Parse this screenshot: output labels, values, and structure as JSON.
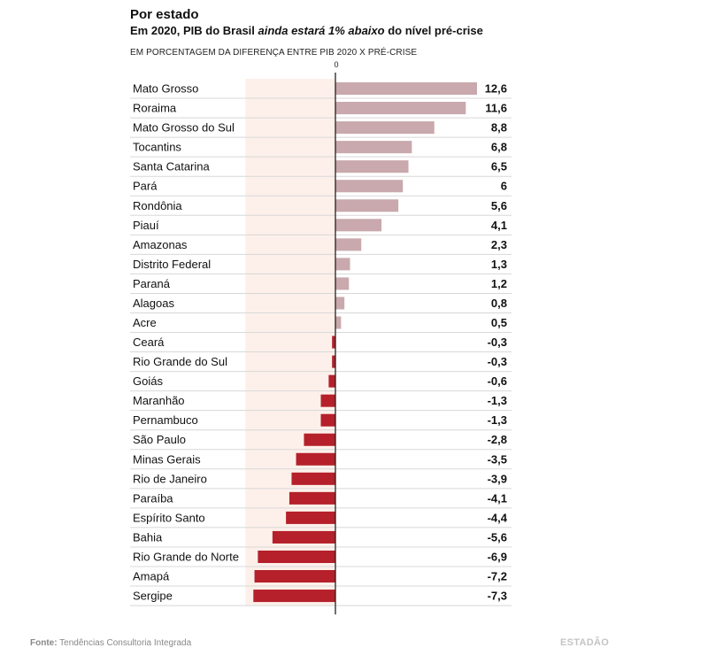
{
  "header": {
    "title": "Por estado",
    "subtitle_prefix": "Em 2020, PIB do Brasil ",
    "subtitle_em": "ainda estará 1% abaixo",
    "subtitle_suffix": " do nível pré-crise",
    "axis_note": "EM PORCENTAGEM DA DIFERENÇA ENTRE PIB 2020 X PRÉ-CRISE",
    "zero_label": "0"
  },
  "footer": {
    "source_label": "Fonte:",
    "source_text": " Tendências Consultoria Integrada",
    "brand": "ESTADÃO"
  },
  "colors": {
    "positive": "#c9a9ad",
    "negative": "#b5202a",
    "shade": "#fdf0ea",
    "divider": "#d8d8d8",
    "axis": "#222222"
  },
  "chart_data": {
    "type": "bar",
    "orientation": "horizontal",
    "xlim": [
      -7.3,
      12.6
    ],
    "grid": false,
    "categories": [
      "Mato Grosso",
      "Roraima",
      "Mato Grosso do Sul",
      "Tocantins",
      "Santa Catarina",
      "Pará",
      "Rondônia",
      "Piauí",
      "Amazonas",
      "Distrito Federal",
      "Paraná",
      "Alagoas",
      "Acre",
      "Ceará",
      "Rio Grande do Sul",
      "Goiás",
      "Maranhão",
      "Pernambuco",
      "São Paulo",
      "Minas Gerais",
      "Rio de Janeiro",
      "Paraíba",
      "Espírito Santo",
      "Bahia",
      "Rio Grande do Norte",
      "Amapá",
      "Sergipe"
    ],
    "values": [
      12.6,
      11.6,
      8.8,
      6.8,
      6.5,
      6,
      5.6,
      4.1,
      2.3,
      1.3,
      1.2,
      0.8,
      0.5,
      -0.3,
      -0.3,
      -0.6,
      -1.3,
      -1.3,
      -2.8,
      -3.5,
      -3.9,
      -4.1,
      -4.4,
      -5.6,
      -6.9,
      -7.2,
      -7.3
    ],
    "value_labels": [
      "12,6",
      "11,6",
      "8,8",
      "6,8",
      "6,5",
      "6",
      "5,6",
      "4,1",
      "2,3",
      "1,3",
      "1,2",
      "0,8",
      "0,5",
      "-0,3",
      "-0,3",
      "-0,6",
      "-1,3",
      "-1,3",
      "-2,8",
      "-3,5",
      "-3,9",
      "-4,1",
      "-4,4",
      "-5,6",
      "-6,9",
      "-7,2",
      "-7,3"
    ]
  }
}
